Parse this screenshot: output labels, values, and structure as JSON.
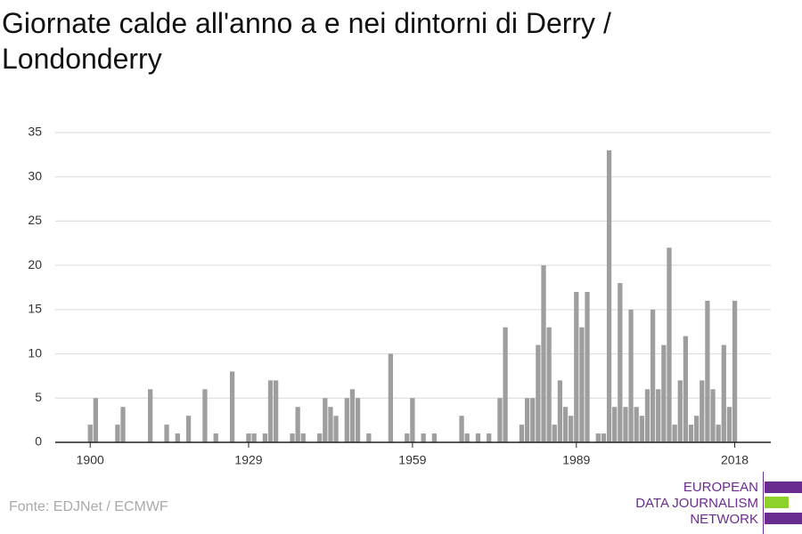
{
  "chart_data": {
    "type": "bar",
    "title": "Giornate calde all'anno a e nei dintorni di Derry / Londonderry",
    "source": "Fonte: EDJNet / ECMWF",
    "logo": [
      "EUROPEAN",
      "DATA JOURNALISM",
      "NETWORK"
    ],
    "color": "#9e9e9e",
    "x": [
      1900,
      1901,
      1902,
      1903,
      1904,
      1905,
      1906,
      1907,
      1908,
      1909,
      1910,
      1911,
      1912,
      1913,
      1914,
      1915,
      1916,
      1917,
      1918,
      1919,
      1920,
      1921,
      1922,
      1923,
      1924,
      1925,
      1926,
      1927,
      1928,
      1929,
      1930,
      1931,
      1932,
      1933,
      1934,
      1935,
      1936,
      1937,
      1938,
      1939,
      1940,
      1941,
      1942,
      1943,
      1944,
      1945,
      1946,
      1947,
      1948,
      1949,
      1950,
      1951,
      1952,
      1953,
      1954,
      1955,
      1956,
      1957,
      1958,
      1959,
      1960,
      1961,
      1962,
      1963,
      1964,
      1965,
      1966,
      1967,
      1968,
      1969,
      1970,
      1971,
      1972,
      1973,
      1974,
      1975,
      1976,
      1977,
      1978,
      1979,
      1980,
      1981,
      1982,
      1983,
      1984,
      1985,
      1986,
      1987,
      1988,
      1989,
      1990,
      1991,
      1992,
      1993,
      1994,
      1995,
      1996,
      1997,
      1998,
      1999,
      2000,
      2001,
      2002,
      2003,
      2004,
      2005,
      2006,
      2007,
      2008,
      2009,
      2010,
      2011,
      2012,
      2013,
      2014,
      2015,
      2016,
      2017,
      2018
    ],
    "values": [
      2,
      5,
      0,
      0,
      0,
      2,
      4,
      0,
      0,
      0,
      0,
      6,
      0,
      0,
      2,
      0,
      1,
      0,
      3,
      0,
      0,
      6,
      0,
      1,
      0,
      0,
      8,
      0,
      0,
      1,
      1,
      0,
      1,
      7,
      7,
      0,
      0,
      1,
      4,
      1,
      0,
      0,
      1,
      5,
      4,
      3,
      0,
      5,
      6,
      5,
      0,
      1,
      0,
      0,
      0,
      10,
      0,
      0,
      1,
      5,
      0,
      1,
      0,
      1,
      0,
      0,
      0,
      0,
      3,
      1,
      0,
      1,
      0,
      1,
      0,
      5,
      13,
      0,
      0,
      2,
      5,
      5,
      11,
      20,
      13,
      2,
      7,
      4,
      3,
      17,
      13,
      17,
      0,
      1,
      1,
      33,
      4,
      18,
      4,
      15,
      4,
      3,
      6,
      15,
      6,
      11,
      22,
      2,
      7,
      12,
      2,
      3,
      7,
      16,
      6,
      2,
      11,
      4,
      16
    ],
    "xlim": [
      1893.6,
      2024.6
    ],
    "xticks": [
      1900,
      1929,
      1959,
      1989,
      2018
    ],
    "ylim": [
      0,
      35
    ],
    "yticks": [
      0,
      5,
      10,
      15,
      20,
      25,
      30,
      35
    ],
    "grid": true
  }
}
